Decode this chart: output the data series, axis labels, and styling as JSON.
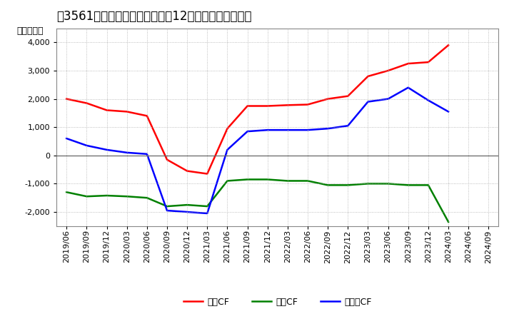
{
  "title": "[㍖3561㍗] キャッシュフローの12か月移動合計の推移",
  "title_prefix": "[3561]　",
  "title_main": "キャッシュフローの12か月移動合計の推移",
  "ylabel": "（百万円）",
  "ylim": [
    -2500,
    4500
  ],
  "yticks": [
    -2000,
    -1000,
    0,
    1000,
    2000,
    3000,
    4000
  ],
  "background_color": "#ffffff",
  "plot_bg_color": "#ffffff",
  "grid_color": "#aaaaaa",
  "x_labels": [
    "2019/06",
    "2019/09",
    "2019/12",
    "2020/03",
    "2020/06",
    "2020/09",
    "2020/12",
    "2021/03",
    "2021/06",
    "2021/09",
    "2021/12",
    "2022/03",
    "2022/06",
    "2022/09",
    "2022/12",
    "2023/03",
    "2023/06",
    "2023/09",
    "2023/12",
    "2024/03",
    "2024/06",
    "2024/09"
  ],
  "operating_cf": [
    2000,
    1850,
    1600,
    1550,
    1400,
    -150,
    -550,
    -650,
    950,
    1750,
    1750,
    1780,
    1800,
    2000,
    2100,
    2800,
    3000,
    3250,
    3300,
    3900,
    null,
    null
  ],
  "investing_cf": [
    -1300,
    -1450,
    -1420,
    -1450,
    -1500,
    -1800,
    -1750,
    -1800,
    -900,
    -850,
    -850,
    -900,
    -900,
    -1050,
    -1050,
    -1000,
    -1000,
    -1050,
    -1050,
    -2350,
    null,
    null
  ],
  "free_cf": [
    600,
    350,
    200,
    100,
    50,
    -1950,
    -2000,
    -2050,
    200,
    850,
    900,
    900,
    900,
    950,
    1050,
    1900,
    2000,
    2400,
    1950,
    1550,
    null,
    null
  ],
  "line_colors": {
    "operating": "#ff0000",
    "investing": "#008000",
    "free": "#0000ff"
  },
  "legend_labels": [
    "営業CF",
    "投資CF",
    "フリーCF"
  ],
  "line_width": 1.8,
  "title_fontsize": 12,
  "axis_fontsize": 8,
  "legend_fontsize": 9
}
